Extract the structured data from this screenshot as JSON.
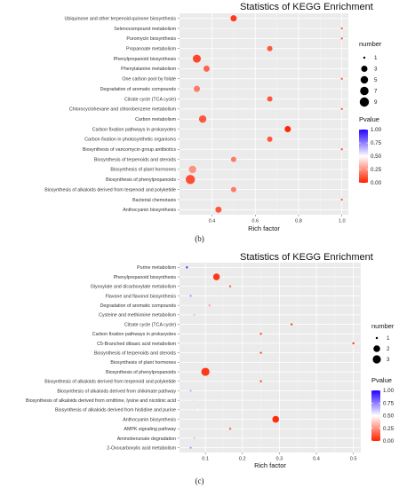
{
  "chart_data": [
    {
      "type": "scatter",
      "title": "Statistics of KEGG Enrichment",
      "xlabel": "Rich factor",
      "ylabel": "",
      "caption": "(b)",
      "xlim": [
        0.25,
        1.03
      ],
      "xticks": [
        0.4,
        0.6,
        0.8,
        1.0
      ],
      "xtick_labels": [
        "0.4",
        "0.6",
        "0.8",
        "1.0"
      ],
      "grid": true,
      "legend_position": "right",
      "size_legend": {
        "title": "number",
        "values": [
          1,
          3,
          5,
          7,
          9
        ]
      },
      "color_legend": {
        "title": "Pvalue",
        "ticks": [
          "1.00",
          "0.75",
          "0.50",
          "0.25",
          "0.00"
        ],
        "low_color": "#ff2200",
        "high_color": "#2200ff"
      },
      "points": [
        {
          "pathway": "Ubiquinone and other terpenoid-quinone biosynthesis",
          "rich_factor": 0.5,
          "number": 3,
          "pvalue": 0.05
        },
        {
          "pathway": "Selenocompound metabolism",
          "rich_factor": 1.0,
          "number": 1,
          "pvalue": 0.15
        },
        {
          "pathway": "Puromycin biosynthesis",
          "rich_factor": 1.0,
          "number": 1,
          "pvalue": 0.15
        },
        {
          "pathway": "Propanoate metabolism",
          "rich_factor": 0.667,
          "number": 2,
          "pvalue": 0.12
        },
        {
          "pathway": "Phenylpropanoid biosynthesis",
          "rich_factor": 0.33,
          "number": 6,
          "pvalue": 0.08
        },
        {
          "pathway": "Phenylalanine metabolism",
          "rich_factor": 0.375,
          "number": 3,
          "pvalue": 0.15
        },
        {
          "pathway": "One carbon pool by folate",
          "rich_factor": 1.0,
          "number": 1,
          "pvalue": 0.15
        },
        {
          "pathway": "Degradation of aromatic compounds",
          "rich_factor": 0.33,
          "number": 3,
          "pvalue": 0.2
        },
        {
          "pathway": "Citrate cycle (TCA cycle)",
          "rich_factor": 0.667,
          "number": 2,
          "pvalue": 0.12
        },
        {
          "pathway": "Chlorocyclohexane and chlorobenzene metabolism",
          "rich_factor": 1.0,
          "number": 1,
          "pvalue": 0.15
        },
        {
          "pathway": "Carbon metabolism",
          "rich_factor": 0.357,
          "number": 5,
          "pvalue": 0.12
        },
        {
          "pathway": "Carbon fixation pathways in prokaryotes",
          "rich_factor": 0.75,
          "number": 3,
          "pvalue": 0.01
        },
        {
          "pathway": "Carbon fixation in photosynthetic organisms",
          "rich_factor": 0.667,
          "number": 2,
          "pvalue": 0.12
        },
        {
          "pathway": "Biosynthesis of vancomycin group antibiotics",
          "rich_factor": 1.0,
          "number": 1,
          "pvalue": 0.15
        },
        {
          "pathway": "Biosynthesis of terpenoids and steroids",
          "rich_factor": 0.5,
          "number": 2,
          "pvalue": 0.2
        },
        {
          "pathway": "Biosynthesis of plant hormones",
          "rich_factor": 0.31,
          "number": 5,
          "pvalue": 0.25
        },
        {
          "pathway": "Biosynthesis of phenylpropanoids",
          "rich_factor": 0.3,
          "number": 9,
          "pvalue": 0.1
        },
        {
          "pathway": "Biosynthesis of alkaloids derived from terpenoid and polyketide",
          "rich_factor": 0.5,
          "number": 2,
          "pvalue": 0.2
        },
        {
          "pathway": "Bacterial chemotaxis",
          "rich_factor": 1.0,
          "number": 1,
          "pvalue": 0.15
        },
        {
          "pathway": "Anthocyanin biosynthesis",
          "rich_factor": 0.43,
          "number": 3,
          "pvalue": 0.12
        }
      ]
    },
    {
      "type": "scatter",
      "title": "Statistics of KEGG Enrichment",
      "xlabel": "Rich factor",
      "ylabel": "",
      "caption": "(c)",
      "xlim": [
        0.03,
        0.52
      ],
      "xticks": [
        0.1,
        0.2,
        0.3,
        0.4,
        0.5
      ],
      "xtick_labels": [
        "0.1",
        "0.2",
        "0.3",
        "0.4",
        "0.5"
      ],
      "grid": true,
      "legend_position": "right",
      "size_legend": {
        "title": "number",
        "values": [
          1,
          2,
          3
        ]
      },
      "color_legend": {
        "title": "Pvalue",
        "ticks": [
          "1.00",
          "0.75",
          "0.50",
          "0.25",
          "0.00"
        ],
        "low_color": "#ff2200",
        "high_color": "#2200ff"
      },
      "points": [
        {
          "pathway": "Purine metabolism",
          "rich_factor": 0.05,
          "number": 1,
          "pvalue": 0.9
        },
        {
          "pathway": "Phenylpropanoid biosynthesis",
          "rich_factor": 0.13,
          "number": 2,
          "pvalue": 0.05
        },
        {
          "pathway": "Glyoxylate and dicarboxylate metabolism",
          "rich_factor": 0.167,
          "number": 1,
          "pvalue": 0.15
        },
        {
          "pathway": "Flavone and flavonol biosynthesis",
          "rich_factor": 0.06,
          "number": 1,
          "pvalue": 0.7
        },
        {
          "pathway": "Degradation of aromatic compounds",
          "rich_factor": 0.111,
          "number": 1,
          "pvalue": 0.3
        },
        {
          "pathway": "Cysteine and methionine metabolism",
          "rich_factor": 0.07,
          "number": 1,
          "pvalue": 0.6
        },
        {
          "pathway": "Citrate cycle (TCA cycle)",
          "rich_factor": 0.333,
          "number": 1,
          "pvalue": 0.05
        },
        {
          "pathway": "Carbon fixation pathways in prokaryotes",
          "rich_factor": 0.25,
          "number": 1,
          "pvalue": 0.1
        },
        {
          "pathway": "C5-Branched dibasic acid metabolism",
          "rich_factor": 0.5,
          "number": 1,
          "pvalue": 0.05
        },
        {
          "pathway": "Biosynthesis of terpenoids and steroids",
          "rich_factor": 0.25,
          "number": 1,
          "pvalue": 0.1
        },
        {
          "pathway": "Biosynthesis of plant hormones",
          "rich_factor": 0.08,
          "number": 1,
          "pvalue": 0.45
        },
        {
          "pathway": "Biosynthesis of phenylpropanoids",
          "rich_factor": 0.1,
          "number": 3,
          "pvalue": 0.05
        },
        {
          "pathway": "Biosynthesis of alkaloids derived from terpenoid and polyketide",
          "rich_factor": 0.25,
          "number": 1,
          "pvalue": 0.1
        },
        {
          "pathway": "Biosynthesis of alkaloids derived from shikimate pathway",
          "rich_factor": 0.06,
          "number": 1,
          "pvalue": 0.65
        },
        {
          "pathway": "Biosynthesis of alkaloids derived from ornithine, lysine and nicotinic acid",
          "rich_factor": 0.07,
          "number": 1,
          "pvalue": 0.55
        },
        {
          "pathway": "Biosynthesis of alkaloids derived from histidine and purine",
          "rich_factor": 0.08,
          "number": 1,
          "pvalue": 0.5
        },
        {
          "pathway": "Anthocyanin biosynthesis",
          "rich_factor": 0.29,
          "number": 2,
          "pvalue": 0.02
        },
        {
          "pathway": "AMPK signaling pathway",
          "rich_factor": 0.167,
          "number": 1,
          "pvalue": 0.15
        },
        {
          "pathway": "Aminobenzoate degradation",
          "rich_factor": 0.07,
          "number": 1,
          "pvalue": 0.6
        },
        {
          "pathway": "2-Oxocarboxylic acid metabolism",
          "rich_factor": 0.06,
          "number": 1,
          "pvalue": 0.7
        }
      ]
    }
  ]
}
